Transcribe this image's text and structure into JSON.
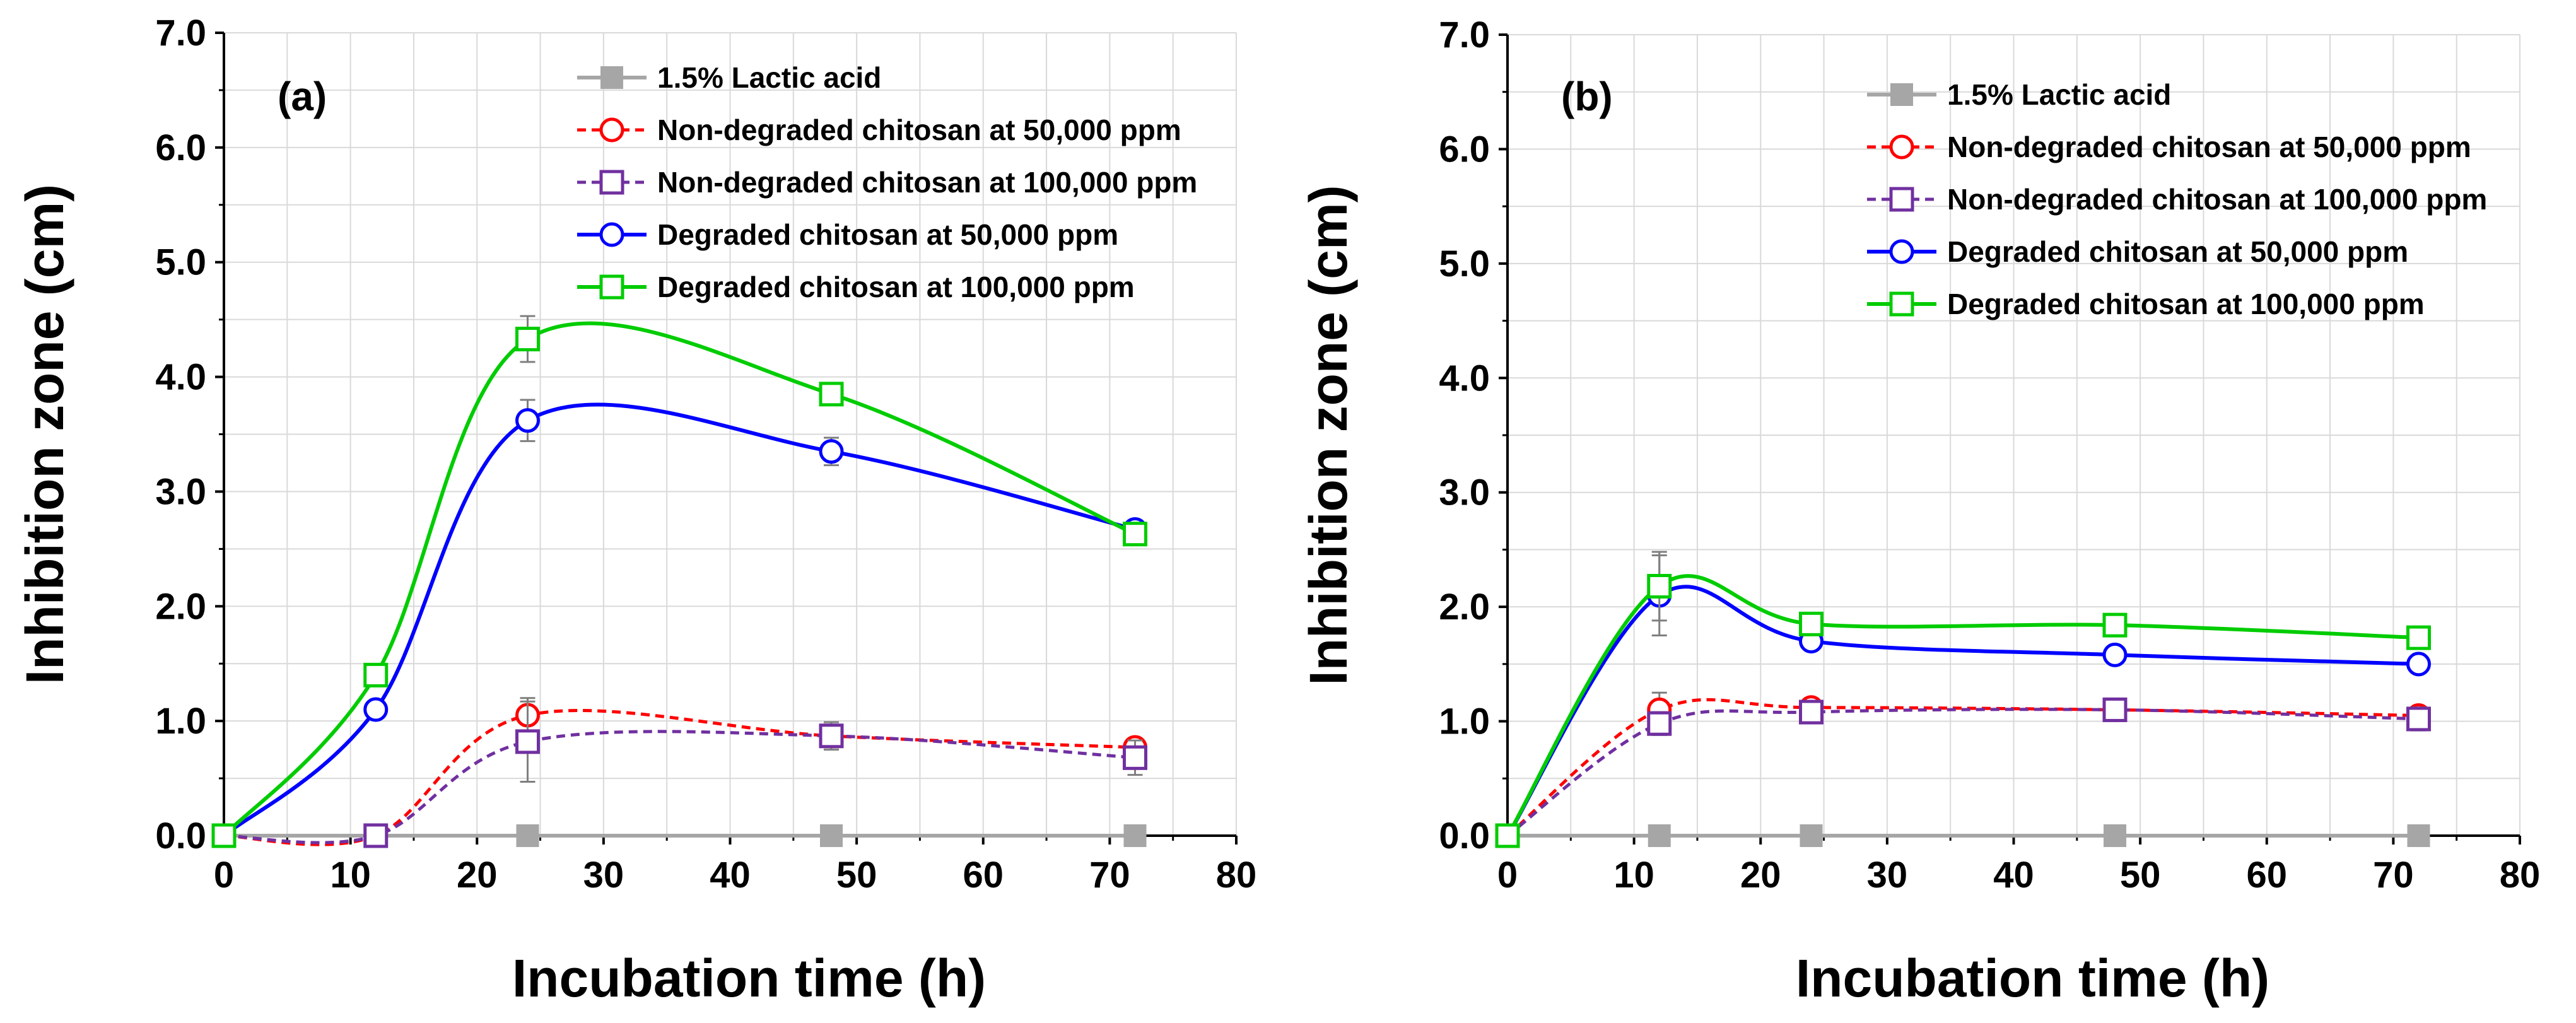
{
  "colors": {
    "lactic": "#a6a6a6",
    "nd50": "#ff0000",
    "nd100": "#7030a0",
    "d50": "#0000ff",
    "d100": "#00cc00",
    "grid": "#d9d9d9",
    "axis": "#000000"
  },
  "chart_data": [
    {
      "type": "line",
      "panel_label": "(a)",
      "xlabel": "Incubation time (h)",
      "ylabel": "Inhibition zone (cm)",
      "xlim": [
        0,
        80
      ],
      "ylim": [
        0,
        7
      ],
      "xticks": [
        0,
        10,
        20,
        30,
        40,
        50,
        60,
        70,
        80
      ],
      "xtick_labels": [
        "0",
        "10",
        "20",
        "30",
        "40",
        "50",
        "60",
        "70",
        "80"
      ],
      "yticks": [
        0,
        1,
        2,
        3,
        4,
        5,
        6,
        7
      ],
      "ytick_labels": [
        "0.0",
        "1.0",
        "2.0",
        "3.0",
        "4.0",
        "5.0",
        "6.0",
        "7.0"
      ],
      "grid": true,
      "legend_position": "top-center",
      "x": [
        0,
        12,
        24,
        48,
        72
      ],
      "series": [
        {
          "key": "lactic",
          "name": "1.5%  Lactic acid",
          "marker": "filled-square",
          "line": "solid",
          "smooth": false,
          "values": [
            0,
            0,
            0,
            0,
            0
          ],
          "errors": [
            0,
            0,
            0,
            0,
            0
          ]
        },
        {
          "key": "nd50",
          "name": "Non-degraded chitosan at 50,000 ppm",
          "marker": "open-circle",
          "line": "dashed",
          "smooth": true,
          "values": [
            0,
            0,
            1.05,
            0.87,
            0.77
          ],
          "errors": [
            0,
            0,
            0.15,
            0.1,
            0.08
          ]
        },
        {
          "key": "nd100",
          "name": "Non-degraded chitosan at 100,000 ppm",
          "marker": "open-square",
          "line": "dashed",
          "smooth": true,
          "values": [
            0,
            0,
            0.82,
            0.87,
            0.68
          ],
          "errors": [
            0,
            0,
            0.35,
            0.12,
            0.15
          ]
        },
        {
          "key": "d50",
          "name": "Degraded chitosan at 50,000 ppm",
          "marker": "open-circle",
          "line": "solid",
          "smooth": true,
          "values": [
            0,
            1.1,
            3.62,
            3.35,
            2.67
          ],
          "errors": [
            0,
            0,
            0.18,
            0.12,
            0.08
          ]
        },
        {
          "key": "d100",
          "name": "Degraded chitosan at 100,000 ppm",
          "marker": "open-square",
          "line": "solid",
          "smooth": true,
          "values": [
            0,
            1.4,
            4.33,
            3.85,
            2.63
          ],
          "errors": [
            0,
            0,
            0.2,
            0.05,
            0.05
          ]
        }
      ]
    },
    {
      "type": "line",
      "panel_label": "(b)",
      "xlabel": "Incubation time (h)",
      "ylabel": "Inhibition zone (cm)",
      "xlim": [
        0,
        80
      ],
      "ylim": [
        0,
        7
      ],
      "xticks": [
        0,
        10,
        20,
        30,
        40,
        50,
        60,
        70,
        80
      ],
      "xtick_labels": [
        "0",
        "10",
        "20",
        "30",
        "40",
        "50",
        "60",
        "70",
        "80"
      ],
      "yticks": [
        0,
        1,
        2,
        3,
        4,
        5,
        6,
        7
      ],
      "ytick_labels": [
        "0.0",
        "1.0",
        "2.0",
        "3.0",
        "4.0",
        "5.0",
        "6.0",
        "7.0"
      ],
      "grid": true,
      "legend_position": "top-right",
      "x": [
        0,
        12,
        24,
        48,
        72
      ],
      "series": [
        {
          "key": "lactic",
          "name": "1.5%  Lactic acid",
          "marker": "filled-square",
          "line": "solid",
          "smooth": false,
          "values": [
            0,
            0,
            0,
            0,
            0
          ],
          "errors": [
            0,
            0,
            0,
            0,
            0
          ]
        },
        {
          "key": "nd50",
          "name": "Non-degraded chitosan at 50,000 ppm",
          "marker": "open-circle",
          "line": "dashed",
          "smooth": true,
          "values": [
            0,
            1.1,
            1.12,
            1.1,
            1.05
          ],
          "errors": [
            0,
            0.15,
            0.05,
            0.05,
            0.07
          ]
        },
        {
          "key": "nd100",
          "name": "Non-degraded chitosan at 100,000 ppm",
          "marker": "open-square",
          "line": "dashed",
          "smooth": true,
          "values": [
            0,
            0.98,
            1.08,
            1.1,
            1.02
          ],
          "errors": [
            0,
            0.1,
            0.05,
            0.05,
            0.1
          ]
        },
        {
          "key": "d50",
          "name": "Degraded chitosan at 50,000 ppm",
          "marker": "open-circle",
          "line": "solid",
          "smooth": true,
          "values": [
            0,
            2.1,
            1.7,
            1.58,
            1.5
          ],
          "errors": [
            0,
            0.35,
            0.05,
            0.05,
            0.05
          ]
        },
        {
          "key": "d100",
          "name": "Degraded chitosan at 100,000 ppm",
          "marker": "open-square",
          "line": "solid",
          "smooth": true,
          "values": [
            0,
            2.18,
            1.85,
            1.84,
            1.73
          ],
          "errors": [
            0,
            0.3,
            0.08,
            0.05,
            0.05
          ]
        }
      ]
    }
  ]
}
